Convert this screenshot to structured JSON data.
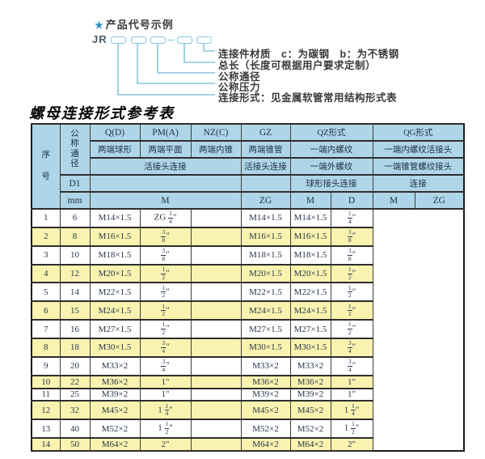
{
  "page": {
    "code_example": {
      "star": "★",
      "heading": "产品代号示例",
      "prefix": "JR",
      "box_count": 5,
      "labels": [
        "连接件材质　c：为碳钢　b：为不锈钢",
        "总长（长度可根据用户要求定制）",
        "公称通径",
        "公称压力",
        "连接形式：见金属软管常用结构形式表"
      ]
    },
    "table": {
      "title": "螺母连接形式参考表",
      "header": {
        "seq": "序号",
        "dn": "公称通径",
        "q_code": "Q(D)",
        "pm_code": "PM(A)",
        "nz_code": "NZ(C)",
        "gz_code": "GZ",
        "qz_code": "QZ形式",
        "qg_code": "QG形式",
        "q_ends": "两端球形",
        "pm_ends": "两端平面",
        "nz_ends": "两端内锥",
        "gz_ends": "两端锥管",
        "qz_ends": "一端内螺纹",
        "qg_ends": "一端内螺纹活接头",
        "union_conn": "活接头连接",
        "gz_conn": "活接头连接",
        "qz_conn": "一端外螺纹",
        "qg_conn": "一端锥管螺纹接头",
        "d1": "D1",
        "qz_join": "球形接头连接",
        "qg_join": "连接",
        "mm": "mm",
        "m_unit": "M",
        "gz_unit": "ZG",
        "qz_m_unit": "M",
        "qz_d_unit": "D",
        "qg_m_unit": "M",
        "qg_zg_unit": "ZG"
      },
      "rows": [
        [
          "1",
          "6",
          "M14×1.5",
          "ZG [1/4]\"",
          "",
          "M14×1.5",
          "M14×1.5",
          "[1/4]\""
        ],
        [
          "2",
          "8",
          "M16×1.5",
          "[3/8]\"",
          "",
          "M16×1.5",
          "M16×1.5",
          "[3/8]\""
        ],
        [
          "3",
          "10",
          "M18×1.5",
          "[3/8]\"",
          "",
          "M18×1.5",
          "M18×1.5",
          "[3/8]\""
        ],
        [
          "4",
          "12",
          "M20×1.5",
          "[1/2]\"",
          "",
          "M20×1.5",
          "M20×1.5",
          "[1/2]\""
        ],
        [
          "5",
          "14",
          "M22×1.5",
          "[1/2]\"",
          "",
          "M22×1.5",
          "M22×1.5",
          "[1/2]\""
        ],
        [
          "6",
          "15",
          "M24×1.5",
          "[1/2]\"",
          "",
          "M24×1.5",
          "M24×1.5",
          "[1/2]\""
        ],
        [
          "7",
          "16",
          "M27×1.5",
          "[1/2]\"",
          "",
          "M27×1.5",
          "M27×1.5",
          "[1/2]\""
        ],
        [
          "8",
          "18",
          "M30×1.5",
          "[3/4]\"",
          "",
          "M30×1.5",
          "M30×1.5",
          "[3/4]\""
        ],
        [
          "9",
          "20",
          "M33×2",
          "[3/4]\"",
          "",
          "M33×2",
          "M33×2",
          "[3/4]\""
        ],
        [
          "10",
          "22",
          "M36×2",
          "1\"",
          "",
          "M36×2",
          "M36×2",
          "1\""
        ],
        [
          "11",
          "25",
          "M39×2",
          "1\"",
          "",
          "M39×2",
          "M39×2",
          "1\""
        ],
        [
          "12",
          "32",
          "M45×2",
          "1 [1/4]\"",
          "",
          "M45×2",
          "M45×2",
          "1 [1/4]\""
        ],
        [
          "13",
          "40",
          "M52×2",
          "1 [1/2]\"",
          "",
          "M52×2",
          "M52×2",
          "1 [1/2]\""
        ],
        [
          "14",
          "50",
          "M64×2",
          "2\"",
          "",
          "M64×2",
          "M64×2",
          "2\""
        ]
      ]
    },
    "colors": {
      "header_bg": "#afd6e8",
      "row_alt_bg": "#faf3b0",
      "accent_line": "#85c6dc",
      "star": "#2f8fc5",
      "text": "#27364a"
    }
  }
}
